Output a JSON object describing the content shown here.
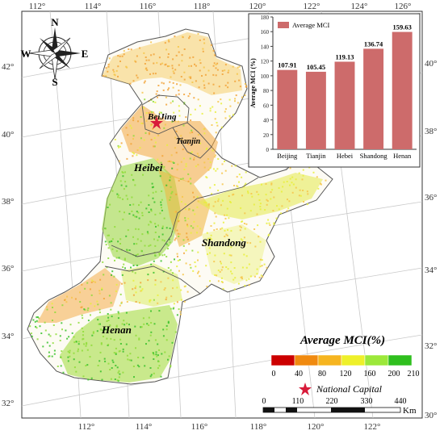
{
  "coordinates": {
    "lon_top": [
      "112°",
      "114°",
      "116°",
      "118°",
      "120°",
      "122°",
      "124°",
      "126°"
    ],
    "lon_bottom": [
      "112°",
      "114°",
      "116°",
      "118°",
      "120°",
      "122°"
    ],
    "lat_left": [
      "42°",
      "40°",
      "38°",
      "36°",
      "34°",
      "32°"
    ],
    "lat_right": [
      "40°",
      "38°",
      "36°",
      "34°",
      "32°",
      "30°"
    ]
  },
  "compass": {
    "north": "N",
    "south": "S",
    "east": "E",
    "west": "W"
  },
  "regions": {
    "beijing_label": "BeiJing",
    "tianjin_label": "Tianjin",
    "hebei_label": "Heibei",
    "shandong_label": "Shandong",
    "henan_label": "Henan"
  },
  "inset_chart": {
    "chart_data": {
      "type": "bar",
      "categories": [
        "Beijing",
        "Tianjin",
        "Hebei",
        "Shandong",
        "Henan"
      ],
      "values": [
        107.91,
        105.45,
        119.13,
        136.74,
        159.63
      ],
      "data_labels": [
        "107.91",
        "105.45",
        "119.13",
        "136.74",
        "159.63"
      ],
      "series": [
        {
          "name": "Average MCI",
          "values": [
            107.91,
            105.45,
            119.13,
            136.74,
            159.63
          ]
        }
      ],
      "title": "",
      "xlabel": "",
      "ylabel": "Average MCI (%)",
      "ylim": [
        0,
        180
      ],
      "yticks": [
        "0",
        "20",
        "40",
        "60",
        "80",
        "100",
        "120",
        "140",
        "160",
        "180"
      ],
      "legend_position": "top-left",
      "bar_color": "#cd6b6b",
      "grid": false
    }
  },
  "legend": {
    "title": "Average MCI(%)",
    "classes": [
      {
        "color": "#cc0000"
      },
      {
        "color": "#f08a10"
      },
      {
        "color": "#f6b520"
      },
      {
        "color": "#eef02a"
      },
      {
        "color": "#9ce83a"
      },
      {
        "color": "#2fbf1e"
      }
    ],
    "breaks": [
      "0",
      "40",
      "80",
      "120",
      "160",
      "200",
      "210"
    ],
    "capital_label": "National Capital",
    "capital_color": "#d81b3a"
  },
  "scale_bar": {
    "labels": [
      "0",
      "110",
      "220",
      "330",
      "440"
    ],
    "unit": "Km"
  }
}
